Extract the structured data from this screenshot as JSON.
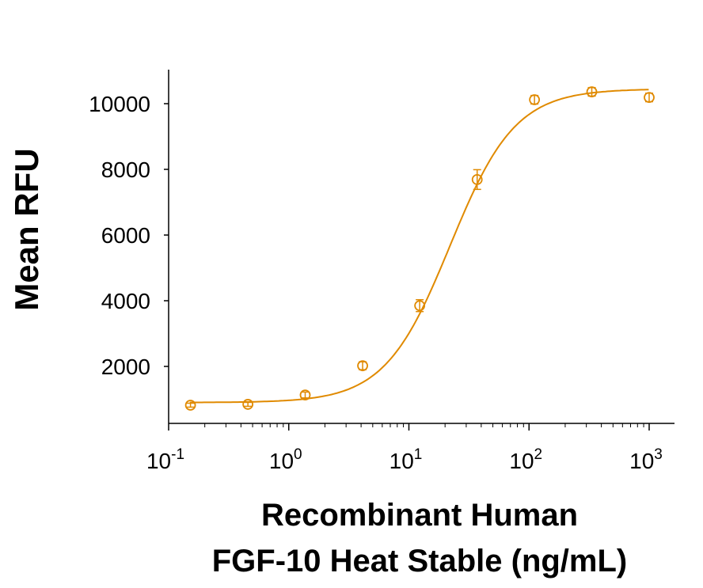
{
  "chart_data": {
    "type": "scatter",
    "title": "",
    "xlabel_line1": "Recombinant Human",
    "xlabel_line2": "FGF-10 Heat Stable (ng/mL)",
    "ylabel": "Mean RFU",
    "x_scale": "log",
    "xlim": [
      0.1,
      1600
    ],
    "ylim": [
      260,
      11000
    ],
    "x_ticks": [
      {
        "base": "10",
        "exp": "-1",
        "value": 0.1
      },
      {
        "base": "10",
        "exp": "0",
        "value": 1
      },
      {
        "base": "10",
        "exp": "1",
        "value": 10
      },
      {
        "base": "10",
        "exp": "2",
        "value": 100
      },
      {
        "base": "10",
        "exp": "3",
        "value": 1000
      }
    ],
    "y_ticks": [
      2000,
      4000,
      6000,
      8000,
      10000
    ],
    "y_tick_labels": [
      "2000",
      "4000",
      "6000",
      "8000",
      "10000"
    ],
    "grid": false,
    "color": "#E08A00",
    "series": [
      {
        "x": [
          0.152,
          0.457,
          1.37,
          4.12,
          12.3,
          37,
          111,
          333,
          1000
        ],
        "y": [
          820,
          845,
          1130,
          2020,
          3850,
          7690,
          10120,
          10360,
          10190
        ],
        "err": [
          60,
          60,
          90,
          120,
          180,
          300,
          130,
          130,
          130
        ]
      }
    ],
    "fit": "four-parameter logistic curve"
  }
}
